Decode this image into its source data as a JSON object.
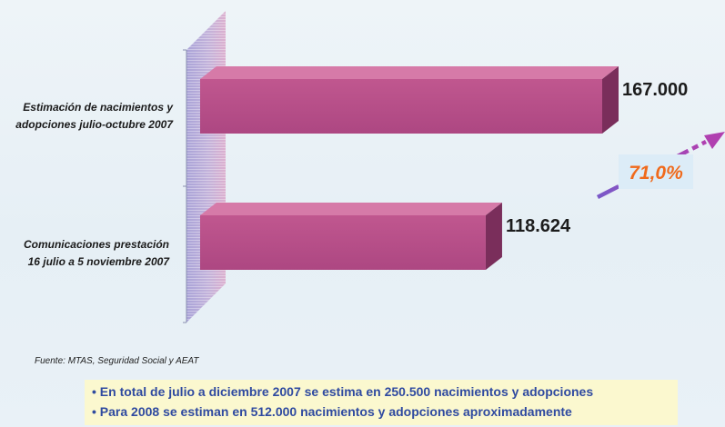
{
  "chart_data": {
    "type": "bar",
    "orientation": "horizontal",
    "categories": [
      [
        "Estimación de nacimientos y",
        "adopciones julio-octubre 2007"
      ],
      [
        "Comunicaciones prestación",
        "16 julio a 5 noviembre 2007"
      ]
    ],
    "values": [
      167000,
      118624
    ],
    "value_labels": [
      "167.000",
      "118.624"
    ],
    "annotation": "71,0%",
    "colors": {
      "bar_front": "#b5508a",
      "bar_top": "#d67aa8",
      "bar_side": "#7a2e5b",
      "wall": "#c7b6dc",
      "arrow": "#9b47b8",
      "annotation": "#f06a1c"
    },
    "grid": false,
    "legend": "none"
  },
  "source": "Fuente: MTAS, Seguridad Social y AEAT",
  "notes": [
    "En total de julio a diciembre 2007 se estima en 250.500 nacimientos y adopciones",
    "Para 2008 se estiman en 512.000 nacimientos y adopciones aproximadamente"
  ]
}
